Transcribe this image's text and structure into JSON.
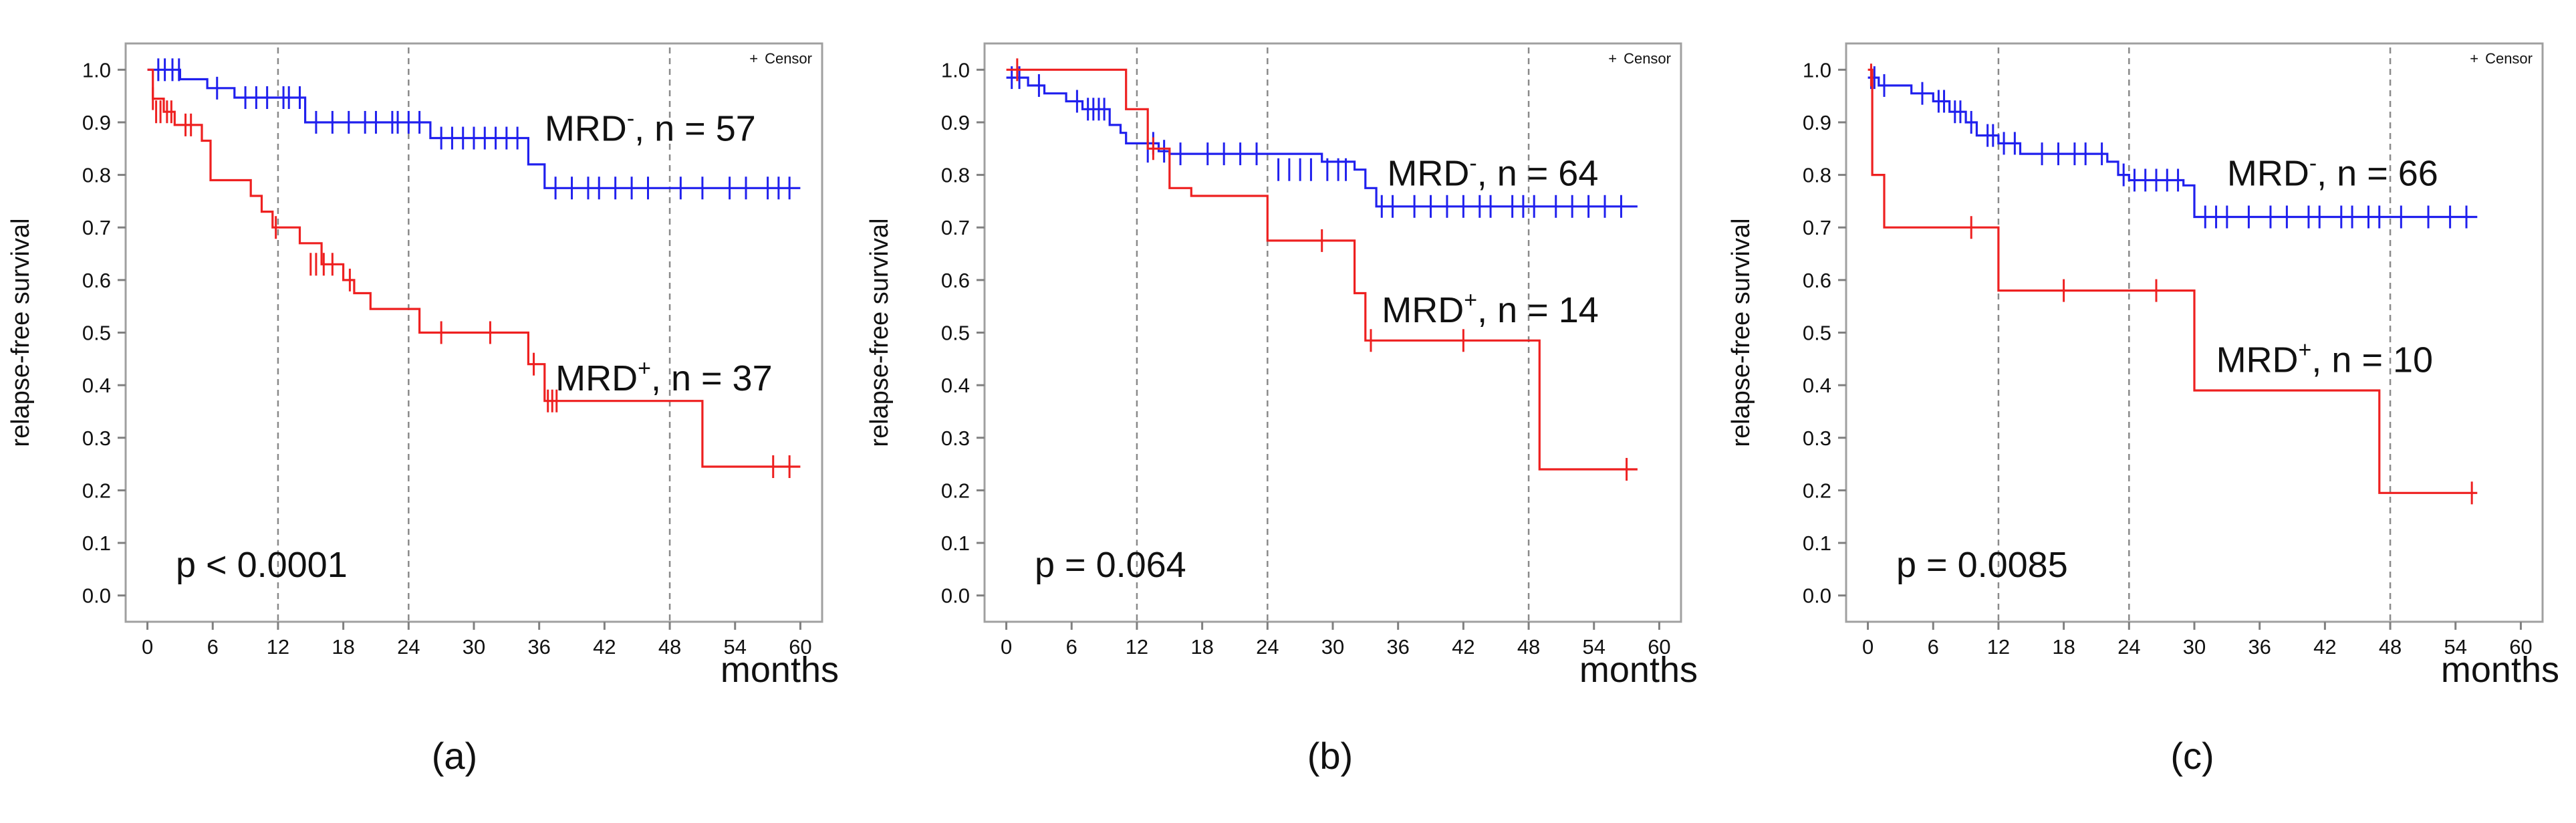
{
  "chart_data": [
    {
      "type": "line",
      "panel_label": "(a)",
      "ylabel": "relapse-free survival",
      "xlabel": "months",
      "xlim": [
        -2,
        62
      ],
      "ylim": [
        -0.05,
        1.05
      ],
      "x_ticks": [
        0,
        6,
        12,
        18,
        24,
        30,
        36,
        42,
        48,
        54,
        60
      ],
      "y_ticks": [
        "0.0",
        "0.1",
        "0.2",
        "0.3",
        "0.4",
        "0.5",
        "0.6",
        "0.7",
        "0.8",
        "0.9",
        "1.0"
      ],
      "vlines": [
        12,
        24,
        48
      ],
      "legend": {
        "symbol": "+",
        "label": "Censor"
      },
      "p_value": "p < 0.0001",
      "series": [
        {
          "name": "MRD-",
          "sup": "-",
          "n_text": ", n = 57",
          "color": "#2020ee",
          "label_pos": [
            36.5,
            0.865
          ],
          "steps": [
            [
              0,
              1.0
            ],
            [
              3,
              0.982
            ],
            [
              5.5,
              0.965
            ],
            [
              8,
              0.947
            ],
            [
              14.5,
              0.9
            ],
            [
              26,
              0.87
            ],
            [
              35,
              0.82
            ],
            [
              36.5,
              0.775
            ],
            [
              60,
              0.775
            ]
          ],
          "censors": [
            [
              1,
              1.0
            ],
            [
              1.6,
              1.0
            ],
            [
              2.3,
              1.0
            ],
            [
              2.9,
              1.0
            ],
            [
              6.4,
              0.965
            ],
            [
              9,
              0.947
            ],
            [
              10,
              0.947
            ],
            [
              11,
              0.947
            ],
            [
              12.5,
              0.947
            ],
            [
              13,
              0.947
            ],
            [
              14,
              0.947
            ],
            [
              15.5,
              0.9
            ],
            [
              17,
              0.9
            ],
            [
              18.5,
              0.9
            ],
            [
              20,
              0.9
            ],
            [
              21,
              0.9
            ],
            [
              22.5,
              0.9
            ],
            [
              23,
              0.9
            ],
            [
              24,
              0.9
            ],
            [
              25,
              0.9
            ],
            [
              27,
              0.87
            ],
            [
              28,
              0.87
            ],
            [
              29,
              0.87
            ],
            [
              30,
              0.87
            ],
            [
              31,
              0.87
            ],
            [
              32,
              0.87
            ],
            [
              33,
              0.87
            ],
            [
              34,
              0.87
            ],
            [
              37.5,
              0.775
            ],
            [
              39,
              0.775
            ],
            [
              40.5,
              0.775
            ],
            [
              41.5,
              0.775
            ],
            [
              43,
              0.775
            ],
            [
              44.5,
              0.775
            ],
            [
              46,
              0.775
            ],
            [
              49,
              0.775
            ],
            [
              51,
              0.775
            ],
            [
              53.5,
              0.775
            ],
            [
              55,
              0.775
            ],
            [
              57,
              0.775
            ],
            [
              58,
              0.775
            ],
            [
              59,
              0.775
            ]
          ]
        },
        {
          "name": "MRD+",
          "sup": "+",
          "n_text": ", n = 37",
          "color": "#ee2020",
          "label_pos": [
            37.5,
            0.39
          ],
          "steps": [
            [
              0,
              1.0
            ],
            [
              0.5,
              0.945
            ],
            [
              1.5,
              0.92
            ],
            [
              2.5,
              0.895
            ],
            [
              5,
              0.865
            ],
            [
              5.8,
              0.79
            ],
            [
              9.5,
              0.76
            ],
            [
              10.5,
              0.73
            ],
            [
              11.5,
              0.7
            ],
            [
              14,
              0.67
            ],
            [
              16,
              0.63
            ],
            [
              18,
              0.6
            ],
            [
              19,
              0.575
            ],
            [
              20.5,
              0.545
            ],
            [
              25,
              0.5
            ],
            [
              35,
              0.44
            ],
            [
              36.5,
              0.37
            ],
            [
              51,
              0.245
            ],
            [
              60,
              0.245
            ]
          ],
          "censors": [
            [
              0.5,
              0.945
            ],
            [
              0.8,
              0.92
            ],
            [
              1.2,
              0.92
            ],
            [
              1.8,
              0.92
            ],
            [
              2.2,
              0.92
            ],
            [
              3.5,
              0.895
            ],
            [
              4,
              0.895
            ],
            [
              11.8,
              0.7
            ],
            [
              15,
              0.63
            ],
            [
              15.5,
              0.63
            ],
            [
              16.2,
              0.63
            ],
            [
              17,
              0.63
            ],
            [
              18.6,
              0.6
            ],
            [
              27,
              0.5
            ],
            [
              31.5,
              0.5
            ],
            [
              35.5,
              0.44
            ],
            [
              36.8,
              0.37
            ],
            [
              37.2,
              0.37
            ],
            [
              37.6,
              0.37
            ],
            [
              57.5,
              0.245
            ],
            [
              59,
              0.245
            ]
          ]
        }
      ]
    },
    {
      "type": "line",
      "panel_label": "(b)",
      "ylabel": "relapse-free survival",
      "xlabel": "months",
      "xlim": [
        -2,
        62
      ],
      "ylim": [
        -0.05,
        1.05
      ],
      "x_ticks": [
        0,
        6,
        12,
        18,
        24,
        30,
        36,
        42,
        48,
        54,
        60
      ],
      "y_ticks": [
        "0.0",
        "0.1",
        "0.2",
        "0.3",
        "0.4",
        "0.5",
        "0.6",
        "0.7",
        "0.8",
        "0.9",
        "1.0"
      ],
      "vlines": [
        12,
        24,
        48
      ],
      "legend": {
        "symbol": "+",
        "label": "Censor"
      },
      "p_value": "p = 0.064",
      "series": [
        {
          "name": "MRD-",
          "sup": "-",
          "n_text": ", n = 64",
          "color": "#2020ee",
          "label_pos": [
            35,
            0.78
          ],
          "steps": [
            [
              0,
              0.985
            ],
            [
              2,
              0.97
            ],
            [
              3.5,
              0.955
            ],
            [
              5.5,
              0.94
            ],
            [
              7,
              0.925
            ],
            [
              9.5,
              0.895
            ],
            [
              10.5,
              0.88
            ],
            [
              11,
              0.86
            ],
            [
              14,
              0.845
            ],
            [
              15,
              0.84
            ],
            [
              29,
              0.825
            ],
            [
              32,
              0.81
            ],
            [
              33,
              0.775
            ],
            [
              34,
              0.74
            ],
            [
              58,
              0.74
            ]
          ],
          "censors": [
            [
              0.5,
              0.985
            ],
            [
              1.2,
              0.985
            ],
            [
              3,
              0.97
            ],
            [
              6.5,
              0.94
            ],
            [
              7.5,
              0.925
            ],
            [
              8,
              0.925
            ],
            [
              8.5,
              0.925
            ],
            [
              9,
              0.925
            ],
            [
              13,
              0.845
            ],
            [
              13.5,
              0.86
            ],
            [
              14.5,
              0.845
            ],
            [
              16,
              0.84
            ],
            [
              18.5,
              0.84
            ],
            [
              20,
              0.84
            ],
            [
              21.5,
              0.84
            ],
            [
              23,
              0.84
            ],
            [
              25,
              0.81
            ],
            [
              26,
              0.81
            ],
            [
              27,
              0.81
            ],
            [
              28,
              0.81
            ],
            [
              29.5,
              0.81
            ],
            [
              30.5,
              0.81
            ],
            [
              31.2,
              0.81
            ],
            [
              34.5,
              0.74
            ],
            [
              35.5,
              0.74
            ],
            [
              37.5,
              0.74
            ],
            [
              39,
              0.74
            ],
            [
              40.5,
              0.74
            ],
            [
              42,
              0.74
            ],
            [
              43.5,
              0.74
            ],
            [
              44.5,
              0.74
            ],
            [
              46.5,
              0.74
            ],
            [
              47.5,
              0.74
            ],
            [
              48.5,
              0.74
            ],
            [
              50.5,
              0.74
            ],
            [
              52,
              0.74
            ],
            [
              53.5,
              0.74
            ],
            [
              55,
              0.74
            ],
            [
              56.5,
              0.74
            ]
          ]
        },
        {
          "name": "MRD+",
          "sup": "+",
          "n_text": ", n = 14",
          "color": "#ee2020",
          "label_pos": [
            34.5,
            0.52
          ],
          "steps": [
            [
              0,
              1.0
            ],
            [
              11,
              0.925
            ],
            [
              13,
              0.85
            ],
            [
              15,
              0.775
            ],
            [
              17,
              0.76
            ],
            [
              24,
              0.675
            ],
            [
              32,
              0.575
            ],
            [
              33,
              0.485
            ],
            [
              49,
              0.24
            ],
            [
              58,
              0.24
            ]
          ],
          "censors": [
            [
              1,
              1.0
            ],
            [
              13.5,
              0.85
            ],
            [
              29,
              0.675
            ],
            [
              33.5,
              0.485
            ],
            [
              42,
              0.485
            ],
            [
              57,
              0.24
            ]
          ]
        }
      ]
    },
    {
      "type": "line",
      "panel_label": "(c)",
      "ylabel": "relapse-free survival",
      "xlabel": "months",
      "xlim": [
        -2,
        62
      ],
      "ylim": [
        -0.05,
        1.05
      ],
      "x_ticks": [
        0,
        6,
        12,
        18,
        24,
        30,
        36,
        42,
        48,
        54,
        60
      ],
      "y_ticks": [
        "0.0",
        "0.1",
        "0.2",
        "0.3",
        "0.4",
        "0.5",
        "0.6",
        "0.7",
        "0.8",
        "0.9",
        "1.0"
      ],
      "vlines": [
        12,
        24,
        48
      ],
      "legend": {
        "symbol": "+",
        "label": "Censor"
      },
      "p_value": "p = 0.0085",
      "series": [
        {
          "name": "MRD-",
          "sup": "-",
          "n_text": ", n = 66",
          "color": "#2020ee",
          "label_pos": [
            33,
            0.78
          ],
          "steps": [
            [
              0,
              0.985
            ],
            [
              1,
              0.97
            ],
            [
              4,
              0.955
            ],
            [
              6,
              0.94
            ],
            [
              7.5,
              0.92
            ],
            [
              9,
              0.9
            ],
            [
              10,
              0.875
            ],
            [
              12,
              0.86
            ],
            [
              14,
              0.84
            ],
            [
              22,
              0.825
            ],
            [
              23,
              0.8
            ],
            [
              24,
              0.79
            ],
            [
              29,
              0.78
            ],
            [
              30,
              0.72
            ],
            [
              56,
              0.72
            ]
          ],
          "censors": [
            [
              0.3,
              0.985
            ],
            [
              0.6,
              0.985
            ],
            [
              1.5,
              0.97
            ],
            [
              5,
              0.955
            ],
            [
              6.5,
              0.94
            ],
            [
              7,
              0.94
            ],
            [
              8,
              0.92
            ],
            [
              8.5,
              0.92
            ],
            [
              9.5,
              0.9
            ],
            [
              11,
              0.875
            ],
            [
              11.5,
              0.875
            ],
            [
              12.5,
              0.86
            ],
            [
              13.5,
              0.86
            ],
            [
              16,
              0.84
            ],
            [
              17.5,
              0.84
            ],
            [
              19,
              0.84
            ],
            [
              20,
              0.84
            ],
            [
              21.5,
              0.84
            ],
            [
              23.5,
              0.8
            ],
            [
              24.5,
              0.79
            ],
            [
              25.5,
              0.79
            ],
            [
              26.5,
              0.79
            ],
            [
              27.5,
              0.79
            ],
            [
              28.5,
              0.79
            ],
            [
              31,
              0.72
            ],
            [
              32,
              0.72
            ],
            [
              33,
              0.72
            ],
            [
              35,
              0.72
            ],
            [
              37,
              0.72
            ],
            [
              38.5,
              0.72
            ],
            [
              40.5,
              0.72
            ],
            [
              41.5,
              0.72
            ],
            [
              43.5,
              0.72
            ],
            [
              44.5,
              0.72
            ],
            [
              46,
              0.72
            ],
            [
              47,
              0.72
            ],
            [
              49,
              0.72
            ],
            [
              51.5,
              0.72
            ],
            [
              53.5,
              0.72
            ],
            [
              55,
              0.72
            ]
          ]
        },
        {
          "name": "MRD+",
          "sup": "+",
          "n_text": ", n = 10",
          "color": "#ee2020",
          "label_pos": [
            32,
            0.425
          ],
          "steps": [
            [
              0,
              1.0
            ],
            [
              0.4,
              0.8
            ],
            [
              1.5,
              0.7
            ],
            [
              12,
              0.58
            ],
            [
              30,
              0.39
            ],
            [
              47,
              0.195
            ],
            [
              56,
              0.195
            ]
          ],
          "censors": [
            [
              0.3,
              0.99
            ],
            [
              9.5,
              0.7
            ],
            [
              18,
              0.58
            ],
            [
              26.5,
              0.58
            ],
            [
              55.5,
              0.195
            ]
          ]
        }
      ]
    }
  ]
}
